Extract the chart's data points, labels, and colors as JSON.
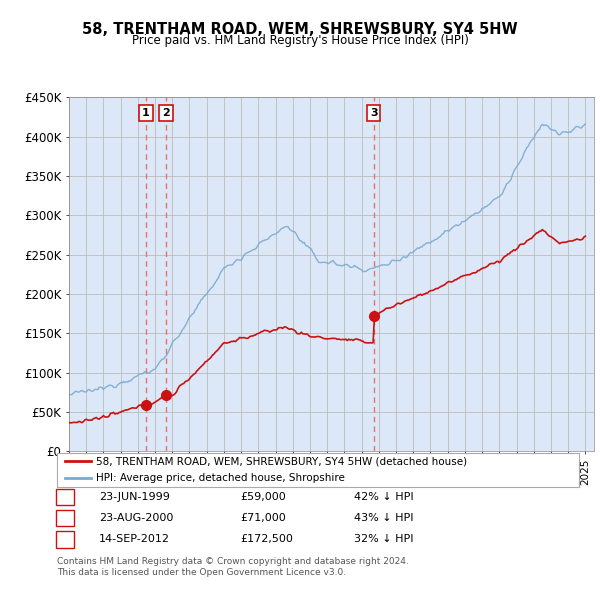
{
  "title": "58, TRENTHAM ROAD, WEM, SHREWSBURY, SY4 5HW",
  "subtitle": "Price paid vs. HM Land Registry's House Price Index (HPI)",
  "legend_line1": "58, TRENTHAM ROAD, WEM, SHREWSBURY, SY4 5HW (detached house)",
  "legend_line2": "HPI: Average price, detached house, Shropshire",
  "footer1": "Contains HM Land Registry data © Crown copyright and database right 2024.",
  "footer2": "This data is licensed under the Open Government Licence v3.0.",
  "transactions": [
    {
      "label": "1",
      "date": "23-JUN-1999",
      "price": "£59,000",
      "hpi_note": "42% ↓ HPI",
      "year": 1999.47,
      "price_val": 59000
    },
    {
      "label": "2",
      "date": "23-AUG-2000",
      "price": "£71,000",
      "hpi_note": "43% ↓ HPI",
      "year": 2000.64,
      "price_val": 71000
    },
    {
      "label": "3",
      "date": "14-SEP-2012",
      "price": "£172,500",
      "hpi_note": "32% ↓ HPI",
      "year": 2012.71,
      "price_val": 172500
    }
  ],
  "transaction_vline_color": "#e87070",
  "red_line_color": "#cc1111",
  "blue_line_color": "#7aaad0",
  "background_color": "#dce8f8",
  "grid_color": "#bbbbbb",
  "ylim": [
    0,
    450000
  ],
  "xlim": [
    1995,
    2025.5
  ],
  "yticks": [
    0,
    50000,
    100000,
    150000,
    200000,
    250000,
    300000,
    350000,
    400000,
    450000
  ],
  "ytick_labels": [
    "£0",
    "£50K",
    "£100K",
    "£150K",
    "£200K",
    "£250K",
    "£300K",
    "£350K",
    "£400K",
    "£450K"
  ]
}
